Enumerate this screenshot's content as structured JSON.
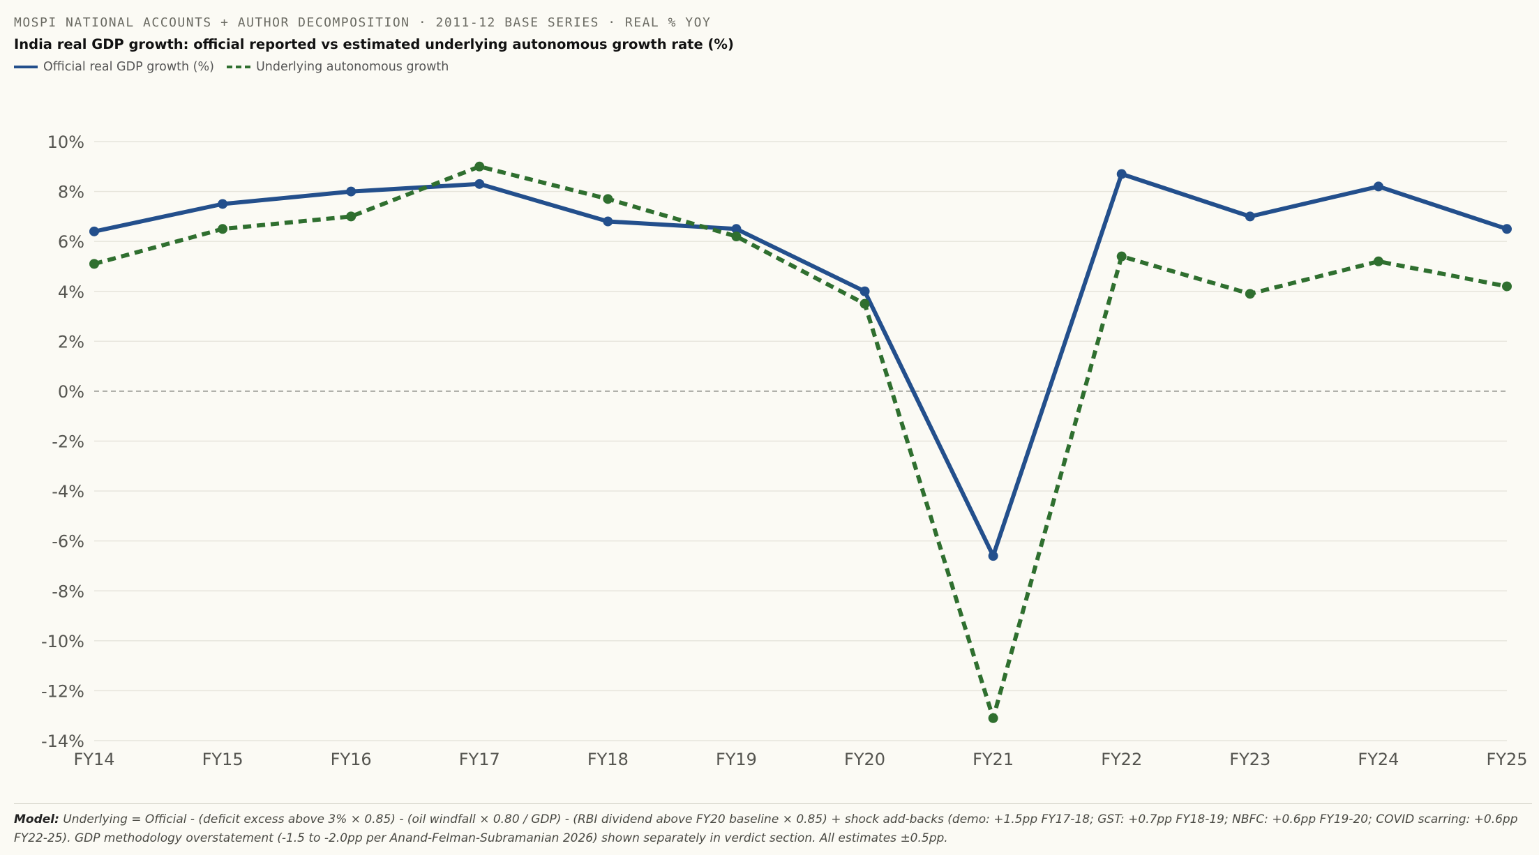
{
  "header": {
    "kicker": "MOSPI NATIONAL ACCOUNTS + AUTHOR DECOMPOSITION · 2011-12 BASE SERIES · REAL % YOY",
    "title": "India real GDP growth: official reported vs estimated underlying autonomous growth rate (%)"
  },
  "legend": {
    "official_label": "Official real GDP growth (%)",
    "underlying_label": "Underlying autonomous growth"
  },
  "footnote": {
    "label": "Model:",
    "text": "Underlying = Official - (deficit excess above 3% × 0.85) - (oil windfall × 0.80 / GDP) - (RBI dividend above FY20 baseline × 0.85) + shock add-backs (demo: +1.5pp FY17-18; GST: +0.7pp FY18-19; NBFC: +0.6pp FY19-20; COVID scarring: +0.6pp FY22-25). GDP methodology overstatement (-1.5 to -2.0pp per Anand-Felman-Subramanian 2026) shown separately in verdict section. All estimates ±0.5pp."
  },
  "colors": {
    "official": "#234f8c",
    "underlying": "#2f6f2f",
    "grid": "#e6e4db",
    "zero": "#9a9a94",
    "tick": "#555550"
  },
  "chart_data": {
    "type": "line",
    "title": "India real GDP growth: official reported vs estimated underlying autonomous growth rate (%)",
    "xlabel": "",
    "ylabel": "",
    "categories": [
      "FY14",
      "FY15",
      "FY16",
      "FY17",
      "FY18",
      "FY19",
      "FY20",
      "FY21",
      "FY22",
      "FY23",
      "FY24",
      "FY25"
    ],
    "ylim": [
      -14,
      10
    ],
    "yticks": [
      10,
      8,
      6,
      4,
      2,
      0,
      -2,
      -4,
      -6,
      -8,
      -10,
      -12,
      -14
    ],
    "ytick_labels": [
      "10%",
      "8%",
      "6%",
      "4%",
      "2%",
      "0%",
      "-2%",
      "-4%",
      "-6%",
      "-8%",
      "-10%",
      "-12%",
      "-14%"
    ],
    "grid": true,
    "legend_position": "top-left",
    "series": [
      {
        "name": "Official real GDP growth (%)",
        "style": "solid",
        "values": [
          6.4,
          7.5,
          8.0,
          8.3,
          6.8,
          6.5,
          4.0,
          -6.6,
          8.7,
          7.0,
          8.2,
          6.5
        ]
      },
      {
        "name": "Underlying autonomous growth",
        "style": "dashed",
        "values": [
          5.1,
          6.5,
          7.0,
          9.0,
          7.7,
          6.2,
          3.5,
          -13.1,
          5.4,
          3.9,
          5.2,
          4.2
        ]
      }
    ]
  }
}
